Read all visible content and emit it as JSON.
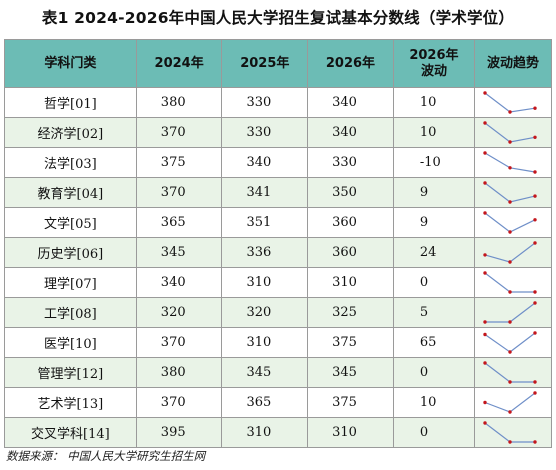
{
  "title": "表1  2024-2026年中国人民大学招生复试基本分数线（学术学位）",
  "headers": {
    "subject": "学科门类",
    "y2024": "2024年",
    "y2025": "2025年",
    "y2026": "2026年",
    "change_line1": "2026年",
    "change_line2": "波动",
    "trend": "波动趋势"
  },
  "rows": [
    {
      "subject": "哲学[01]",
      "y2024": "380",
      "y2025": "330",
      "y2026": "340",
      "change": "10"
    },
    {
      "subject": "经济学[02]",
      "y2024": "370",
      "y2025": "330",
      "y2026": "340",
      "change": "10"
    },
    {
      "subject": "法学[03]",
      "y2024": "375",
      "y2025": "340",
      "y2026": "330",
      "change": "-10"
    },
    {
      "subject": "教育学[04]",
      "y2024": "370",
      "y2025": "341",
      "y2026": "350",
      "change": "9"
    },
    {
      "subject": "文学[05]",
      "y2024": "365",
      "y2025": "351",
      "y2026": "360",
      "change": "9"
    },
    {
      "subject": "历史学[06]",
      "y2024": "345",
      "y2025": "336",
      "y2026": "360",
      "change": "24"
    },
    {
      "subject": "理学[07]",
      "y2024": "340",
      "y2025": "310",
      "y2026": "310",
      "change": "0"
    },
    {
      "subject": "工学[08]",
      "y2024": "320",
      "y2025": "320",
      "y2026": "325",
      "change": "5"
    },
    {
      "subject": "医学[10]",
      "y2024": "370",
      "y2025": "310",
      "y2026": "375",
      "change": "65"
    },
    {
      "subject": "管理学[12]",
      "y2024": "380",
      "y2025": "345",
      "y2026": "345",
      "change": "0"
    },
    {
      "subject": "艺术学[13]",
      "y2024": "370",
      "y2025": "365",
      "y2026": "375",
      "change": "10"
    },
    {
      "subject": "交叉学科[14]",
      "y2024": "395",
      "y2025": "310",
      "y2026": "310",
      "change": "0"
    }
  ],
  "source": "数据来源：  中国人民大学研究生招生网",
  "colors": {
    "header_bg": "#6cbcb5",
    "alt_row_bg": "#e9f3e7",
    "trend_line": "#6f8fc8",
    "trend_point": "#c4161c"
  }
}
